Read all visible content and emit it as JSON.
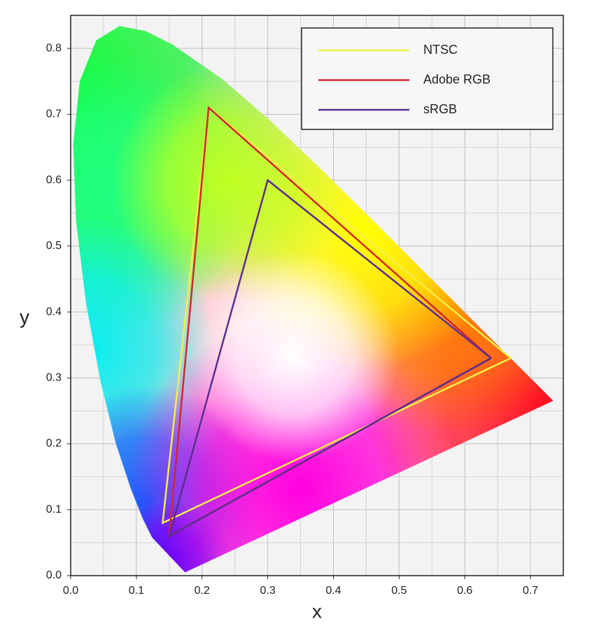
{
  "chart_data": {
    "type": "line",
    "xlabel": "x",
    "ylabel": "y",
    "xlim": [
      0,
      0.75
    ],
    "ylim": [
      0,
      0.85
    ],
    "xticks": [
      {
        "value": 0,
        "label": "0.0"
      },
      0.1,
      0.2,
      0.3,
      0.4,
      0.5,
      0.6,
      0.7
    ],
    "yticks": [
      {
        "value": 0,
        "label": "0.0"
      },
      0.1,
      0.2,
      0.3,
      0.4,
      0.5,
      0.6,
      0.7,
      0.8
    ],
    "grid": true,
    "legend": "upper right",
    "locus": {
      "x": [
        0.1741,
        0.1241,
        0.1096,
        0.0913,
        0.0687,
        0.0454,
        0.0235,
        0.0082,
        0.0039,
        0.0139,
        0.0389,
        0.0743,
        0.1142,
        0.1547,
        0.2296,
        0.3016,
        0.3731,
        0.4441,
        0.5125,
        0.5752,
        0.627,
        0.6915,
        0.7347
      ],
      "values": [
        0.005,
        0.0578,
        0.0868,
        0.1327,
        0.2007,
        0.295,
        0.4127,
        0.5384,
        0.6548,
        0.7502,
        0.812,
        0.8338,
        0.8262,
        0.8059,
        0.7543,
        0.6923,
        0.6245,
        0.5547,
        0.4866,
        0.4242,
        0.3725,
        0.3083,
        0.2653
      ]
    },
    "series": [
      {
        "name": "NTSC",
        "color": "#f2ef4a",
        "x": [
          0.67,
          0.21,
          0.14,
          0.67
        ],
        "values": [
          0.33,
          0.71,
          0.08,
          0.33
        ]
      },
      {
        "name": "Adobe RGB",
        "color": "#d3262b",
        "x": [
          0.64,
          0.21,
          0.15,
          0.64
        ],
        "values": [
          0.33,
          0.71,
          0.06,
          0.33
        ]
      },
      {
        "name": "sRGB",
        "color": "#5b2d8e",
        "x": [
          0.64,
          0.3,
          0.15,
          0.64
        ],
        "values": [
          0.33,
          0.6,
          0.06,
          0.33
        ]
      }
    ]
  }
}
